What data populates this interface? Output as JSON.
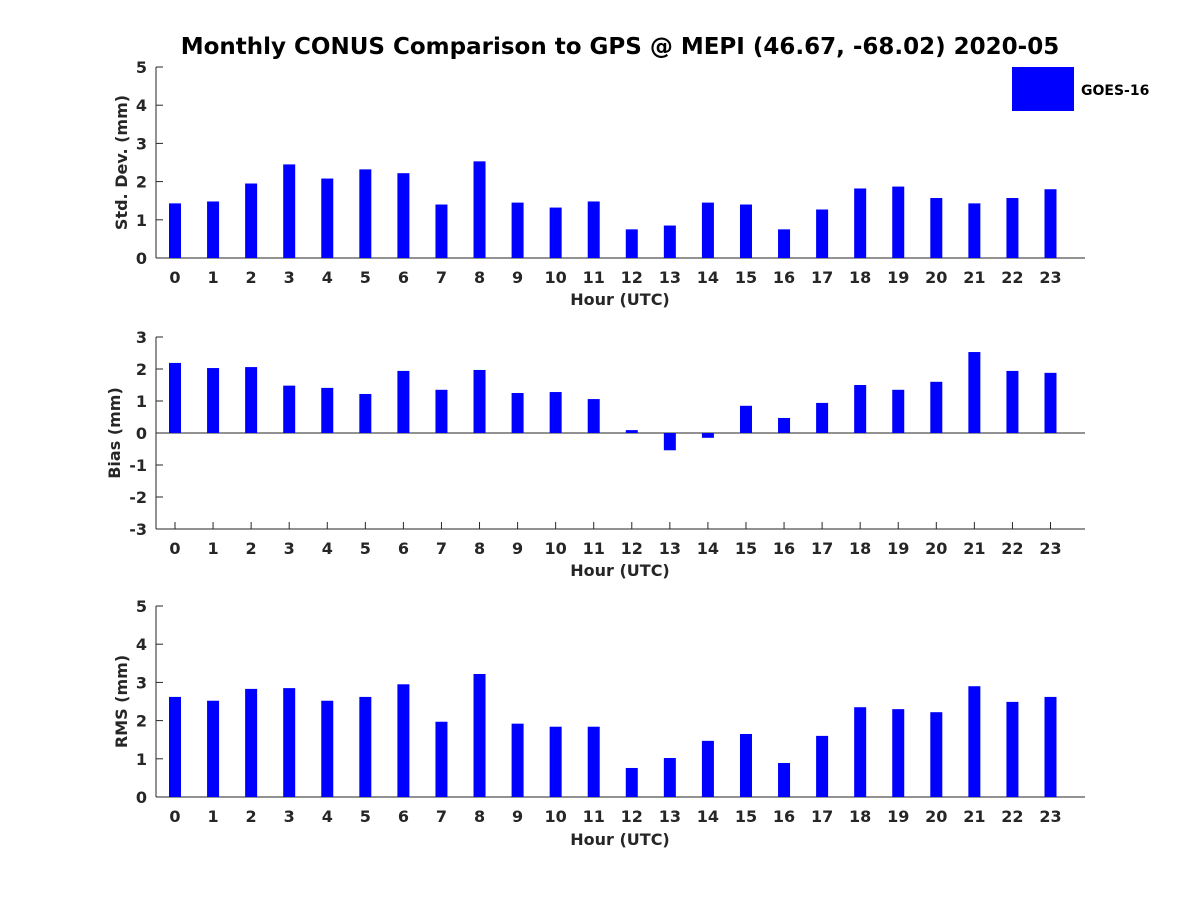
{
  "title": "Monthly CONUS Comparison to GPS @ MEPI (46.67, -68.02) 2020-05",
  "legend": {
    "label": "GOES-16",
    "color": "#0000ff"
  },
  "chart_data": [
    {
      "type": "bar",
      "ylabel": "Std. Dev. (mm)",
      "xlabel": "Hour (UTC)",
      "ylim": [
        0,
        5
      ],
      "yticks": [
        "0",
        "1",
        "2",
        "3",
        "4",
        "5"
      ],
      "categories": [
        "0",
        "1",
        "2",
        "3",
        "4",
        "5",
        "6",
        "7",
        "8",
        "9",
        "10",
        "11",
        "12",
        "13",
        "14",
        "15",
        "16",
        "17",
        "18",
        "19",
        "20",
        "21",
        "22",
        "23"
      ],
      "series": [
        {
          "name": "GOES-16",
          "color": "#0000ff",
          "values": [
            1.43,
            1.48,
            1.95,
            2.45,
            2.08,
            2.32,
            2.22,
            1.4,
            2.53,
            1.45,
            1.32,
            1.48,
            0.75,
            0.85,
            1.45,
            1.4,
            0.75,
            1.27,
            1.82,
            1.87,
            1.57,
            1.43,
            1.57,
            1.8
          ]
        }
      ],
      "grid": false
    },
    {
      "type": "bar",
      "ylabel": "Bias (mm)",
      "xlabel": "Hour (UTC)",
      "ylim": [
        -3,
        3
      ],
      "yticks": [
        "-3",
        "-2",
        "-1",
        "0",
        "1",
        "2",
        "3"
      ],
      "categories": [
        "0",
        "1",
        "2",
        "3",
        "4",
        "5",
        "6",
        "7",
        "8",
        "9",
        "10",
        "11",
        "12",
        "13",
        "14",
        "15",
        "16",
        "17",
        "18",
        "19",
        "20",
        "21",
        "22",
        "23"
      ],
      "series": [
        {
          "name": "GOES-16",
          "color": "#0000ff",
          "values": [
            2.19,
            2.03,
            2.06,
            1.48,
            1.41,
            1.22,
            1.94,
            1.35,
            1.97,
            1.25,
            1.28,
            1.06,
            0.09,
            -0.54,
            -0.15,
            0.85,
            0.47,
            0.94,
            1.5,
            1.35,
            1.6,
            2.53,
            1.94,
            1.88
          ]
        }
      ],
      "grid": false
    },
    {
      "type": "bar",
      "ylabel": "RMS (mm)",
      "xlabel": "Hour (UTC)",
      "ylim": [
        0,
        5
      ],
      "yticks": [
        "0",
        "1",
        "2",
        "3",
        "4",
        "5"
      ],
      "categories": [
        "0",
        "1",
        "2",
        "3",
        "4",
        "5",
        "6",
        "7",
        "8",
        "9",
        "10",
        "11",
        "12",
        "13",
        "14",
        "15",
        "16",
        "17",
        "18",
        "19",
        "20",
        "21",
        "22",
        "23"
      ],
      "series": [
        {
          "name": "GOES-16",
          "color": "#0000ff",
          "values": [
            2.62,
            2.52,
            2.83,
            2.85,
            2.52,
            2.62,
            2.95,
            1.97,
            3.22,
            1.92,
            1.84,
            1.84,
            0.76,
            1.02,
            1.47,
            1.65,
            0.89,
            1.6,
            2.35,
            2.3,
            2.22,
            2.9,
            2.49,
            2.62
          ]
        }
      ],
      "grid": false
    }
  ]
}
